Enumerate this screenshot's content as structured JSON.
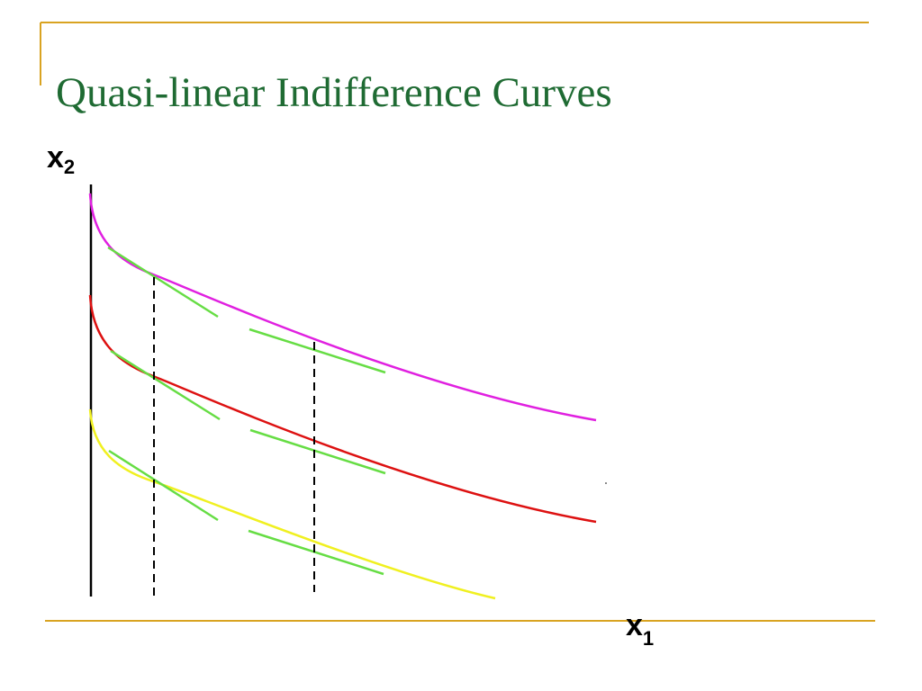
{
  "title": "Quasi-linear Indifference Curves",
  "y_axis_label": {
    "base": "x",
    "sub": "2"
  },
  "x_axis_label": {
    "base": "x",
    "sub": "1"
  }
}
